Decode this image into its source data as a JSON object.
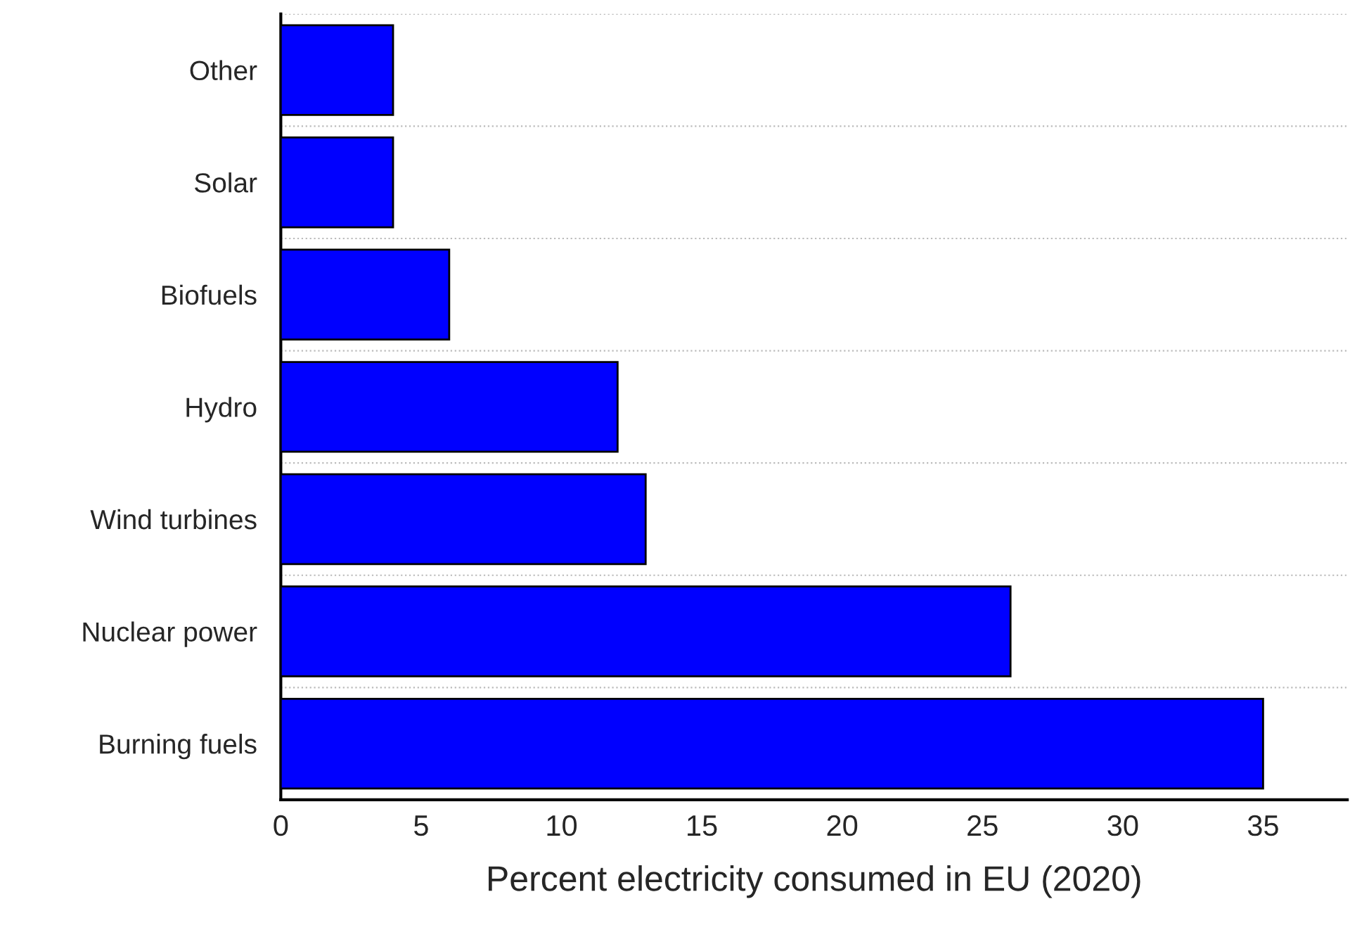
{
  "chart_data": {
    "type": "bar",
    "orientation": "horizontal",
    "xlabel": "Percent electricity consumed in EU (2020)",
    "categories": [
      "Other",
      "Solar",
      "Biofuels",
      "Hydro",
      "Wind turbines",
      "Nuclear power",
      "Burning fuels"
    ],
    "values": [
      4,
      4,
      6,
      12,
      13,
      26,
      35
    ],
    "color": "#0000ff",
    "xlim": [
      0,
      38
    ],
    "xticks": [
      0,
      5,
      10,
      15,
      20,
      25,
      30,
      35
    ],
    "grid": "y"
  }
}
